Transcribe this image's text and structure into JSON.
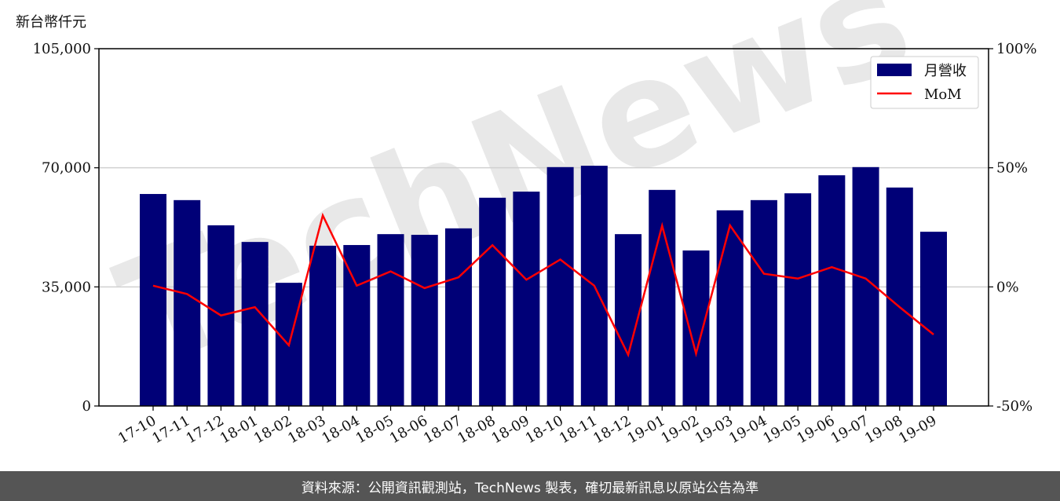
{
  "unit_label": "新台幣仟元",
  "watermark": "TechNews",
  "footer": "資料來源：公開資訊觀測站，TechNews 製表，確切最新訊息以原站公告為準",
  "chart_data": {
    "type": "bar+line",
    "categories": [
      "17-10",
      "17-11",
      "17-12",
      "18-01",
      "18-02",
      "18-03",
      "18-04",
      "18-05",
      "18-06",
      "18-07",
      "18-08",
      "18-09",
      "18-10",
      "18-11",
      "18-12",
      "19-01",
      "19-02",
      "19-03",
      "19-04",
      "19-05",
      "19-06",
      "19-07",
      "19-08",
      "19-09"
    ],
    "series": [
      {
        "name": "月營收",
        "type": "bar",
        "axis": "left",
        "color": "#000077",
        "values": [
          62300,
          60500,
          53100,
          48200,
          36200,
          47100,
          47300,
          50500,
          50300,
          52200,
          61200,
          63000,
          70200,
          70600,
          50500,
          63500,
          45700,
          57500,
          60500,
          62500,
          67800,
          70200,
          64200,
          51200
        ]
      },
      {
        "name": "MoM",
        "type": "line",
        "axis": "right",
        "unit": "%",
        "color": "#ff0000",
        "values": [
          0.5,
          -3,
          -12,
          -8.5,
          -24.5,
          30,
          0.5,
          6.5,
          -0.5,
          4,
          17.5,
          3,
          11.5,
          0.5,
          -28.5,
          25.7,
          -28,
          25.8,
          5.5,
          3.5,
          8.3,
          3.5,
          -8.5,
          -20
        ]
      }
    ],
    "left_axis": {
      "ylim": [
        0,
        105000
      ],
      "ticks": [
        0,
        35000,
        70000,
        105000
      ],
      "tick_labels": [
        "0",
        "35,000",
        "70,000",
        "105,000"
      ]
    },
    "right_axis": {
      "ylim": [
        -50,
        100
      ],
      "ticks": [
        -50,
        0,
        50,
        100
      ],
      "tick_labels": [
        "-50%",
        "0%",
        "50%",
        "100%"
      ]
    },
    "grid": "horizontal",
    "legend": "top-right"
  }
}
